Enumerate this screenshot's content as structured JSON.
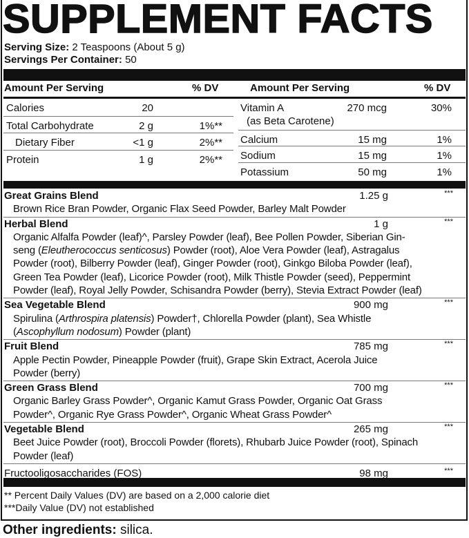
{
  "title": "SUPPLEMENT FACTS",
  "serving_size": {
    "label": "Serving Size:",
    "value": "2 Teaspoons (About 5 g)"
  },
  "servings_per_container": {
    "label": "Servings Per Container:",
    "value": "50"
  },
  "header": {
    "amount": "Amount Per Serving",
    "dv": "% DV"
  },
  "left_rows": [
    {
      "name": "Calories",
      "amount": "20",
      "dv": ""
    },
    {
      "name": "Total Carbohydrate",
      "amount": "2 g",
      "dv": "1%**"
    },
    {
      "name": "Dietary Fiber",
      "amount": "<1 g",
      "dv": "2%**"
    },
    {
      "name": "Protein",
      "amount": "1 g",
      "dv": "2%**"
    }
  ],
  "right_rows": [
    {
      "name": "Vitamin A",
      "sub": "(as Beta Carotene)",
      "amount": "270 mcg",
      "dv": "30%"
    },
    {
      "name": "Calcium",
      "amount": "15 mg",
      "dv": "1%"
    },
    {
      "name": "Sodium",
      "amount": "15 mg",
      "dv": "1%"
    },
    {
      "name": "Potassium",
      "amount": "50 mg",
      "dv": "1%"
    }
  ],
  "blends": [
    {
      "name": "Great Grains Blend",
      "amount": "1.25 g",
      "dv": "***",
      "lines": [
        [
          {
            "t": "Brown Rice Bran Powder, Organic Flax Seed Powder, Barley Malt Powder"
          }
        ]
      ]
    },
    {
      "name": "Herbal Blend",
      "amount": "1 g",
      "dv": "***",
      "lines": [
        [
          {
            "t": "Organic Alfalfa Powder (leaf)^, Parsley Powder (leaf), Bee Pollen Powder, Siberian Gin-"
          }
        ],
        [
          {
            "t": "seng ("
          },
          {
            "t": "Eleutherococcus senticosus",
            "i": true
          },
          {
            "t": ") Powder (root), Aloe Vera Powder (leaf), Astragalus"
          }
        ],
        [
          {
            "t": "Powder (root), Bilberry Powder (leaf), Ginger Powder (root), Ginkgo Biloba Powder (leaf),"
          }
        ],
        [
          {
            "t": "Green Tea Powder (leaf), Licorice Powder (root), Milk Thistle Powder (seed), Peppermint"
          }
        ],
        [
          {
            "t": "Powder (leaf), Royal Jelly Powder, Schisandra Powder (berry), Stevia Extract Powder (leaf)"
          }
        ]
      ]
    },
    {
      "name": "Sea Vegetable Blend",
      "amount": "900 mg",
      "dv": "***",
      "lines": [
        [
          {
            "t": "Spirulina ("
          },
          {
            "t": "Arthrospira platensis",
            "i": true
          },
          {
            "t": ") Powder†, Chlorella Powder (plant), Sea Whistle"
          }
        ],
        [
          {
            "t": "("
          },
          {
            "t": "Ascophyllum nodosum",
            "i": true
          },
          {
            "t": ") Powder (plant)"
          }
        ]
      ]
    },
    {
      "name": "Fruit Blend",
      "amount": "785 mg",
      "dv": "***",
      "lines": [
        [
          {
            "t": "Apple Pectin Powder, Pineapple Powder (fruit), Grape Skin Extract, Acerola Juice"
          }
        ],
        [
          {
            "t": "Powder (berry)"
          }
        ]
      ]
    },
    {
      "name": "Green Grass Blend",
      "amount": "700 mg",
      "dv": "***",
      "lines": [
        [
          {
            "t": "Organic Barley Grass Powder^, Organic Kamut Grass Powder, Organic Oat Grass"
          }
        ],
        [
          {
            "t": "Powder^, Organic Rye Grass Powder^, Organic Wheat Grass Powder^"
          }
        ]
      ]
    },
    {
      "name": "Vegetable Blend",
      "amount": "265 mg",
      "dv": "***",
      "lines": [
        [
          {
            "t": "Beet Juice Powder (root), Broccoli Powder (florets), Rhubarb Juice Powder (root), Spinach"
          }
        ],
        [
          {
            "t": "Powder (leaf)"
          }
        ]
      ]
    },
    {
      "name": "Fructooligosaccharides (FOS)",
      "amount": "98 mg",
      "dv": "***",
      "plain": true,
      "lines": []
    }
  ],
  "footnotes": [
    "** Percent Daily Values (DV) are based on a 2,000 calorie diet",
    "***Daily Value (DV) not established"
  ],
  "other_ingredients": {
    "label": "Other ingredients:",
    "value": "silica."
  }
}
